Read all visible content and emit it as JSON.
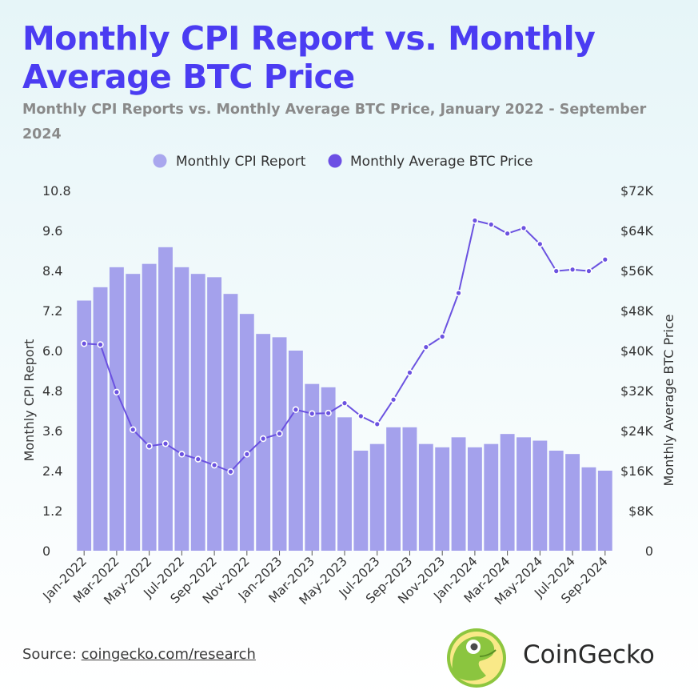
{
  "title": "Monthly CPI Report vs. Monthly Average BTC Price",
  "subtitle": "Monthly CPI Reports vs. Monthly Average BTC Price, January 2022 - September 2024",
  "footer": {
    "source_label": "Source:",
    "source_link": "coingecko.com/research",
    "brand": "CoinGecko"
  },
  "colors": {
    "title": "#4b3cf2",
    "bar": "#a4a1ec",
    "line": "#6b52e0",
    "legend_bar_dot": "#a9a7ee",
    "legend_line_dot": "#6c4fe4"
  },
  "chart_data": {
    "type": "bar",
    "title": "Monthly CPI Report vs. Monthly Average BTC Price",
    "legend": [
      "Monthly CPI Report",
      "Monthly Average BTC Price"
    ],
    "legend_position": "top",
    "categories": [
      "Jan-2022",
      "Feb-2022",
      "Mar-2022",
      "Apr-2022",
      "May-2022",
      "Jun-2022",
      "Jul-2022",
      "Aug-2022",
      "Sep-2022",
      "Oct-2022",
      "Nov-2022",
      "Dec-2022",
      "Jan-2023",
      "Feb-2023",
      "Mar-2023",
      "Apr-2023",
      "May-2023",
      "Jun-2023",
      "Jul-2023",
      "Aug-2023",
      "Sep-2023",
      "Oct-2023",
      "Nov-2023",
      "Dec-2023",
      "Jan-2024",
      "Feb-2024",
      "Mar-2024",
      "Apr-2024",
      "May-2024",
      "Jun-2024",
      "Jul-2024",
      "Aug-2024",
      "Sep-2024"
    ],
    "x_tick_labels": [
      "Jan-2022",
      "Mar-2022",
      "May-2022",
      "Jul-2022",
      "Sep-2022",
      "Nov-2022",
      "Jan-2023",
      "Mar-2023",
      "May-2023",
      "Jul-2023",
      "Sep-2023",
      "Nov-2023",
      "Jan-2024",
      "Mar-2024",
      "May-2024",
      "Jul-2024",
      "Sep-2024"
    ],
    "series": [
      {
        "name": "Monthly CPI Report",
        "type": "bar",
        "axis": "left",
        "values": [
          7.5,
          7.9,
          8.5,
          8.3,
          8.6,
          9.1,
          8.5,
          8.3,
          8.2,
          7.7,
          7.1,
          6.5,
          6.4,
          6.0,
          5.0,
          4.9,
          4.0,
          3.0,
          3.2,
          3.7,
          3.7,
          3.2,
          3.1,
          3.4,
          3.1,
          3.2,
          3.5,
          3.4,
          3.3,
          3.0,
          2.9,
          2.5,
          2.4
        ]
      },
      {
        "name": "Monthly Average BTC Price",
        "type": "line",
        "axis": "right",
        "values": [
          41400,
          41200,
          31700,
          24200,
          20900,
          21400,
          19300,
          18300,
          17100,
          15800,
          19300,
          22400,
          23400,
          28200,
          27400,
          27500,
          29500,
          26900,
          25300,
          30200,
          35600,
          40700,
          42800,
          51500,
          66000,
          65200,
          63400,
          64500,
          61300,
          55900,
          56200,
          55900,
          58200
        ]
      }
    ],
    "y_left": {
      "label": "Monthly CPI Report",
      "range": [
        0,
        10.8
      ],
      "ticks": [
        "0",
        "1.2",
        "2.4",
        "3.6",
        "4.8",
        "6.0",
        "7.2",
        "8.4",
        "9.6",
        "10.8"
      ]
    },
    "y_right": {
      "label": "Monthly Average BTC Price",
      "range": [
        0,
        72000
      ],
      "ticks": [
        "0",
        "$8K",
        "$16K",
        "$24K",
        "$32K",
        "$40K",
        "$48K",
        "$56K",
        "$64K",
        "$72K"
      ]
    },
    "grid": false
  }
}
